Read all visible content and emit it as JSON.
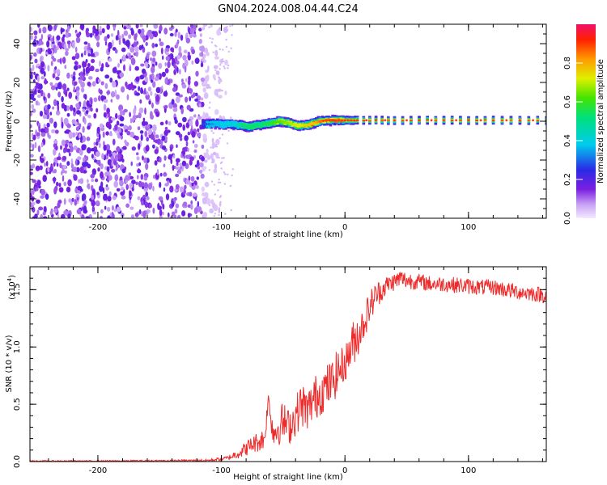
{
  "title": "GN04.2024.008.04.44.C24",
  "colors": {
    "noise": "#7b1fe0",
    "snr_line": "#ee2b2b",
    "axis": "#000000"
  },
  "chart_data": [
    {
      "type": "heatmap",
      "xlabel": "Height of straight line (km)",
      "ylabel": "Frequency (Hz)",
      "xlim": [
        -255,
        163
      ],
      "ylim": [
        -50,
        50
      ],
      "x_ticks": [
        -200,
        -100,
        0,
        100
      ],
      "x_tick_labels": [
        "-200",
        "-100",
        "0",
        "100"
      ],
      "y_ticks": [
        -40,
        -20,
        0,
        20,
        40
      ],
      "y_tick_labels": [
        "-40",
        "-20",
        "0",
        "20",
        "40"
      ],
      "noise_region_x": [
        -255,
        -110
      ],
      "signal_track": {
        "x": [
          -115,
          -105,
          -95,
          -85,
          -78,
          -70,
          -60,
          -52,
          -45,
          -38,
          -30,
          -25,
          -20,
          -10,
          0,
          10,
          40,
          80,
          120,
          163
        ],
        "freq": [
          -1.5,
          -1.5,
          -1.5,
          -2,
          -3,
          -2,
          -1,
          0,
          -1,
          -2.5,
          -2,
          -1,
          0,
          0.5,
          0.5,
          0.5,
          0.5,
          0.5,
          0.5,
          0.5
        ],
        "amplitude": [
          0.3,
          0.4,
          0.45,
          0.5,
          0.6,
          0.55,
          0.65,
          0.7,
          0.75,
          0.8,
          0.85,
          0.85,
          0.95,
          1.0,
          1.0,
          1.0,
          1.0,
          1.0,
          1.0,
          1.0
        ]
      },
      "colorbar": {
        "label": "Normalized spectral amplitude",
        "range": [
          0,
          1
        ],
        "ticks": [
          0.0,
          0.2,
          0.4,
          0.6,
          0.8
        ],
        "tick_labels": [
          "0.0",
          "0.2",
          "0.4",
          "0.6",
          "0.8"
        ]
      }
    },
    {
      "type": "line",
      "xlabel": "Height of straight line (km)",
      "ylabel": "SNR (10 * v/v)",
      "y_multiplier": "(x10",
      "y_multiplier_exp": "4",
      "y_multiplier_close": ")",
      "xlim": [
        -255,
        163
      ],
      "ylim": [
        0,
        1.7
      ],
      "x_ticks": [
        -200,
        -100,
        0,
        100
      ],
      "x_tick_labels": [
        "-200",
        "-100",
        "0",
        "100"
      ],
      "y_ticks": [
        0.0,
        0.5,
        1.0,
        1.5
      ],
      "y_tick_labels": [
        "0.0",
        "0.5",
        "1.0",
        "1.5"
      ],
      "series": [
        {
          "x": [
            -255,
            -200,
            -150,
            -110,
            -95,
            -85,
            -75,
            -65,
            -62,
            -58,
            -50,
            -45,
            -40,
            -35,
            -30,
            -25,
            -20,
            -15,
            -10,
            -5,
            0,
            5,
            10,
            15,
            20,
            25,
            30,
            35,
            40,
            45,
            50,
            60,
            70,
            80,
            90,
            100,
            110,
            120,
            130,
            140,
            150,
            163
          ],
          "values": [
            0.005,
            0.005,
            0.007,
            0.01,
            0.03,
            0.08,
            0.15,
            0.2,
            0.55,
            0.25,
            0.35,
            0.3,
            0.4,
            0.5,
            0.45,
            0.55,
            0.6,
            0.65,
            0.7,
            0.8,
            0.85,
            1.0,
            1.1,
            1.2,
            1.35,
            1.45,
            1.5,
            1.55,
            1.57,
            1.6,
            1.58,
            1.57,
            1.55,
            1.55,
            1.54,
            1.53,
            1.52,
            1.52,
            1.5,
            1.48,
            1.47,
            1.45
          ],
          "noise": [
            0.005,
            0.005,
            0.007,
            0.01,
            0.02,
            0.05,
            0.08,
            0.1,
            0.05,
            0.15,
            0.18,
            0.15,
            0.18,
            0.2,
            0.18,
            0.2,
            0.2,
            0.2,
            0.2,
            0.2,
            0.15,
            0.2,
            0.2,
            0.15,
            0.15,
            0.12,
            0.1,
            0.08,
            0.08,
            0.08,
            0.08,
            0.07,
            0.07,
            0.07,
            0.07,
            0.07,
            0.07,
            0.07,
            0.07,
            0.07,
            0.07,
            0.07
          ]
        }
      ]
    }
  ]
}
